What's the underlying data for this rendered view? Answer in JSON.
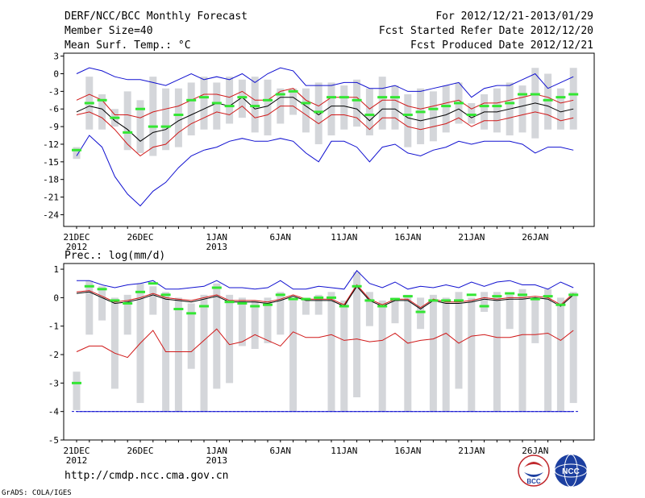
{
  "header": {
    "title": "DERF/NCC/BCC Monthly Forecast",
    "member_size": "Member Size=40",
    "variable": "Mean Surf. Temp.: °C",
    "for_range": "For 2012/12/21-2013/01/29",
    "fcst_started": "Fcst Started Refer Date 2012/12/20",
    "fcst_produced": "Fcst Produced Date 2012/12/21"
  },
  "footer": {
    "url": "http://cmdp.ncc.cma.gov.cn",
    "credit": "GrADS: COLA/IGES",
    "logo_bcc": "BCC",
    "logo_ncc": "NCC"
  },
  "chart_data": [
    {
      "type": "box-ensemble",
      "title": "Mean Surf. Temp.: °C",
      "ylim": [
        -26,
        3.5
      ],
      "yticks": [
        3,
        0,
        -3,
        -6,
        -9,
        -12,
        -15,
        -18,
        -21,
        -24
      ],
      "xlabels": [
        {
          "day": 0,
          "text": "21DEC",
          "sub": "2012"
        },
        {
          "day": 5,
          "text": "26DEC",
          "sub": ""
        },
        {
          "day": 11,
          "text": "1JAN",
          "sub": "2013"
        },
        {
          "day": 16,
          "text": "6JAN",
          "sub": ""
        },
        {
          "day": 21,
          "text": "11JAN",
          "sub": ""
        },
        {
          "day": 26,
          "text": "16JAN",
          "sub": ""
        },
        {
          "day": 31,
          "text": "21JAN",
          "sub": ""
        },
        {
          "day": 36,
          "text": "26JAN",
          "sub": ""
        }
      ],
      "days": 40,
      "mean": [
        -6.5,
        -5.5,
        -6.0,
        -8.0,
        -9.5,
        -11.5,
        -10.0,
        -9.5,
        -8.0,
        -7.0,
        -6.0,
        -5.0,
        -5.5,
        -4.0,
        -6.0,
        -5.5,
        -4.0,
        -4.0,
        -5.5,
        -7.0,
        -5.5,
        -5.5,
        -6.0,
        -8.0,
        -6.0,
        -6.0,
        -7.5,
        -8.0,
        -7.5,
        -7.0,
        -6.0,
        -7.5,
        -6.5,
        -6.5,
        -6.0,
        -5.5,
        -5.0,
        -5.5,
        -6.5,
        -6.0
      ],
      "upper_red": [
        -4.5,
        -3.5,
        -4.5,
        -7.0,
        -7.0,
        -7.5,
        -6.5,
        -6.0,
        -5.5,
        -4.5,
        -3.5,
        -3.5,
        -4.0,
        -3.0,
        -4.5,
        -4.5,
        -3.0,
        -2.5,
        -4.5,
        -5.5,
        -4.0,
        -4.0,
        -4.0,
        -6.0,
        -4.5,
        -4.5,
        -5.5,
        -6.0,
        -5.5,
        -5.0,
        -4.5,
        -6.0,
        -5.0,
        -5.0,
        -4.5,
        -4.0,
        -3.5,
        -4.0,
        -5.0,
        -4.5
      ],
      "lower_red": [
        -7.0,
        -6.5,
        -7.5,
        -9.5,
        -12.0,
        -14.0,
        -12.5,
        -12.0,
        -10.0,
        -8.5,
        -7.5,
        -6.5,
        -7.0,
        -5.5,
        -7.5,
        -7.0,
        -5.5,
        -5.5,
        -7.0,
        -8.5,
        -7.0,
        -7.0,
        -7.5,
        -9.5,
        -7.5,
        -7.5,
        -9.0,
        -9.5,
        -9.0,
        -8.5,
        -7.5,
        -9.0,
        -8.0,
        -8.0,
        -7.5,
        -7.0,
        -6.5,
        -7.0,
        -8.0,
        -7.5
      ],
      "max_blue": [
        0,
        1,
        0.5,
        -0.5,
        -1.0,
        -1.0,
        -1.5,
        -2.0,
        -1.0,
        0,
        -1.0,
        -0.5,
        -1.0,
        0,
        -1.5,
        0,
        1,
        0.5,
        -2.0,
        -2.0,
        -2.0,
        -1.5,
        -1.5,
        -2.5,
        -2.5,
        -2.0,
        -3.0,
        -3.0,
        -2.5,
        -2.0,
        -1.5,
        -4.0,
        -2.5,
        -2.0,
        -2.0,
        -1.0,
        0,
        -2.5,
        -1.5,
        -0.5
      ],
      "min_blue": [
        -14.0,
        -10.5,
        -12.5,
        -17.5,
        -20.5,
        -22.5,
        -20.0,
        -18.5,
        -16.0,
        -14.0,
        -13.0,
        -12.5,
        -11.5,
        -11.0,
        -11.5,
        -11.5,
        -11.0,
        -11.5,
        -13.5,
        -15.0,
        -11.5,
        -11.5,
        -12.5,
        -15.0,
        -12.5,
        -12.0,
        -13.5,
        -14.0,
        -13.0,
        -12.5,
        -11.5,
        -12.0,
        -11.5,
        -11.5,
        -11.5,
        -12.0,
        -13.5,
        -12.5,
        -12.5,
        -13.0
      ],
      "box_top": [
        -12.5,
        -0.5,
        -3.5,
        -6.0,
        -3.0,
        -4.5,
        -0.5,
        -2.5,
        -2.5,
        -1.5,
        -0.5,
        -1.5,
        -0.5,
        -1.0,
        -0.5,
        -1.0,
        -2.5,
        -2.5,
        -2.5,
        -1.5,
        -1.5,
        -2.0,
        -1.0,
        -2.5,
        -0.5,
        -2.0,
        -3.5,
        -2.5,
        -3.0,
        -2.0,
        -1.5,
        -5.0,
        -3.5,
        -2.5,
        -1.5,
        -2.0,
        1.0,
        0,
        -2.5,
        1.0
      ],
      "box_bottom": [
        -14.5,
        -9.5,
        -9.5,
        -9.0,
        -13.0,
        -13.5,
        -14.0,
        -13.0,
        -12.5,
        -10.5,
        -9.5,
        -9.5,
        -8.5,
        -7.5,
        -10.0,
        -10.5,
        -8.5,
        -7.0,
        -10.0,
        -12.0,
        -10.5,
        -9.5,
        -9.0,
        -10.5,
        -9.5,
        -9.5,
        -12.5,
        -12.0,
        -11.5,
        -10.0,
        -8.5,
        -8.5,
        -9.5,
        -10.0,
        -10.5,
        -10.0,
        -11.0,
        -9.5,
        -9.5,
        -9.5
      ],
      "green": [
        -13.0,
        -5.0,
        -4.5,
        -7.5,
        -10.0,
        -6.0,
        -9.0,
        -9.0,
        -7.0,
        -4.5,
        -4.0,
        -5.0,
        -5.5,
        -4.0,
        -5.5,
        -4.5,
        -3.5,
        -3.0,
        -5.0,
        -6.5,
        -4.0,
        -4.0,
        -4.5,
        -7.0,
        -4.0,
        -4.0,
        -7.0,
        -6.5,
        -6.0,
        -5.5,
        -5.0,
        -7.0,
        -5.5,
        -5.5,
        -5.0,
        -3.5,
        -3.5,
        -4.5,
        -4.0,
        -3.5
      ]
    },
    {
      "type": "box-ensemble",
      "title": "Prec.: log(mm/d)",
      "ylim": [
        -5,
        1.2
      ],
      "yticks": [
        1,
        0,
        -1,
        -2,
        -3,
        -4,
        -5
      ],
      "xlabels": [
        {
          "day": 0,
          "text": "21DEC",
          "sub": "2012"
        },
        {
          "day": 5,
          "text": "26DEC",
          "sub": ""
        },
        {
          "day": 11,
          "text": "1JAN",
          "sub": "2013"
        },
        {
          "day": 16,
          "text": "6JAN",
          "sub": ""
        },
        {
          "day": 21,
          "text": "11JAN",
          "sub": ""
        },
        {
          "day": 26,
          "text": "16JAN",
          "sub": ""
        },
        {
          "day": 31,
          "text": "21JAN",
          "sub": ""
        },
        {
          "day": 36,
          "text": "26JAN",
          "sub": ""
        }
      ],
      "days": 40,
      "mean": [
        0.15,
        0.2,
        0.0,
        -0.2,
        -0.15,
        -0.05,
        0.1,
        -0.05,
        -0.1,
        -0.15,
        -0.05,
        0.05,
        -0.15,
        -0.15,
        -0.15,
        -0.2,
        -0.1,
        0.05,
        -0.1,
        -0.1,
        -0.1,
        -0.3,
        0.4,
        -0.1,
        -0.3,
        -0.1,
        -0.1,
        -0.4,
        -0.1,
        -0.2,
        -0.2,
        -0.15,
        -0.05,
        -0.1,
        -0.05,
        -0.05,
        0.0,
        -0.05,
        -0.3,
        0.1
      ],
      "upper_red": [
        0.2,
        0.25,
        0.05,
        -0.15,
        -0.1,
        0.0,
        0.15,
        0.0,
        -0.05,
        -0.1,
        0.0,
        0.1,
        -0.1,
        -0.1,
        -0.1,
        -0.15,
        -0.05,
        0.1,
        -0.05,
        -0.05,
        -0.05,
        -0.25,
        0.45,
        -0.05,
        -0.25,
        -0.05,
        -0.05,
        -0.35,
        -0.05,
        -0.15,
        -0.15,
        -0.1,
        0.0,
        -0.05,
        0.0,
        0.0,
        0.05,
        0.0,
        -0.25,
        0.15
      ],
      "lower_red": [
        -1.9,
        -1.7,
        -1.7,
        -1.95,
        -2.1,
        -1.6,
        -1.15,
        -1.9,
        -1.9,
        -1.9,
        -1.5,
        -1.1,
        -1.65,
        -1.55,
        -1.3,
        -1.5,
        -1.7,
        -1.2,
        -1.4,
        -1.4,
        -1.3,
        -1.5,
        -1.45,
        -1.55,
        -1.5,
        -1.25,
        -1.6,
        -1.5,
        -1.45,
        -1.25,
        -1.6,
        -1.35,
        -1.3,
        -1.4,
        -1.4,
        -1.3,
        -1.3,
        -1.25,
        -1.5,
        -1.15
      ],
      "max_blue": [
        0.6,
        0.6,
        0.45,
        0.35,
        0.45,
        0.5,
        0.6,
        0.3,
        0.3,
        0.35,
        0.4,
        0.6,
        0.35,
        0.35,
        0.3,
        0.35,
        0.6,
        0.3,
        0.3,
        0.4,
        0.35,
        0.3,
        0.95,
        0.5,
        0.35,
        0.55,
        0.3,
        0.4,
        0.35,
        0.45,
        0.35,
        0.55,
        0.4,
        0.55,
        0.6,
        0.45,
        0.45,
        0.3,
        0.55,
        0.35
      ],
      "min_blue": [
        -4.0,
        -4.0,
        -4.0,
        -4.0,
        -4.0,
        -4.0,
        -4.0,
        -4.0,
        -4.0,
        -4.0,
        -4.0,
        -4.0,
        -4.0,
        -4.0,
        -4.0,
        -4.0,
        -4.0,
        -4.0,
        -4.0,
        -4.0,
        -4.0,
        -4.0,
        -4.0,
        -4.0,
        -4.0,
        -4.0,
        -4.0,
        -4.0,
        -4.0,
        -4.0,
        -4.0,
        -4.0,
        -4.0,
        -4.0,
        -4.0,
        -4.0,
        -4.0,
        -4.0,
        -4.0,
        -4.0
      ],
      "box_top": [
        -2.6,
        0.6,
        0.4,
        0.0,
        0.1,
        0.5,
        0.4,
        0.2,
        0.0,
        -0.2,
        0.1,
        0.5,
        0.1,
        0.0,
        -0.1,
        0.0,
        0.2,
        -0.1,
        0.0,
        0.1,
        0.2,
        -0.1,
        0.9,
        0.2,
        -0.1,
        0.0,
        0.1,
        0.0,
        0.1,
        0.0,
        0.2,
        0.0,
        0.2,
        0.2,
        0.1,
        0.3,
        0.0,
        0.3,
        0.0,
        0.2
      ],
      "box_bottom": [
        -3.95,
        -1.3,
        -0.8,
        -3.2,
        -1.3,
        -3.7,
        -0.6,
        -4.0,
        -4.0,
        -2.5,
        -4.0,
        -3.2,
        -3.0,
        -1.7,
        -1.8,
        -1.6,
        -1.3,
        -4.0,
        -0.6,
        -0.6,
        -4.0,
        -4.0,
        -3.5,
        -1.0,
        -4.0,
        -0.9,
        -4.0,
        -1.1,
        -4.0,
        -4.0,
        -3.2,
        -4.0,
        -0.5,
        -4.0,
        -1.1,
        -4.0,
        -1.6,
        -4.0,
        -4.0,
        -3.7
      ],
      "green": [
        -3.0,
        0.4,
        0.3,
        -0.1,
        -0.2,
        0.2,
        0.5,
        0.1,
        -0.4,
        -0.55,
        -0.3,
        0.35,
        -0.15,
        -0.2,
        -0.3,
        -0.25,
        0.1,
        -0.05,
        -0.05,
        0.0,
        0.0,
        -0.3,
        0.4,
        -0.1,
        -0.3,
        -0.05,
        0.05,
        -0.5,
        -0.1,
        -0.1,
        -0.1,
        0.1,
        -0.3,
        0.05,
        0.15,
        0.1,
        -0.05,
        0.05,
        -0.25,
        0.1
      ]
    }
  ]
}
